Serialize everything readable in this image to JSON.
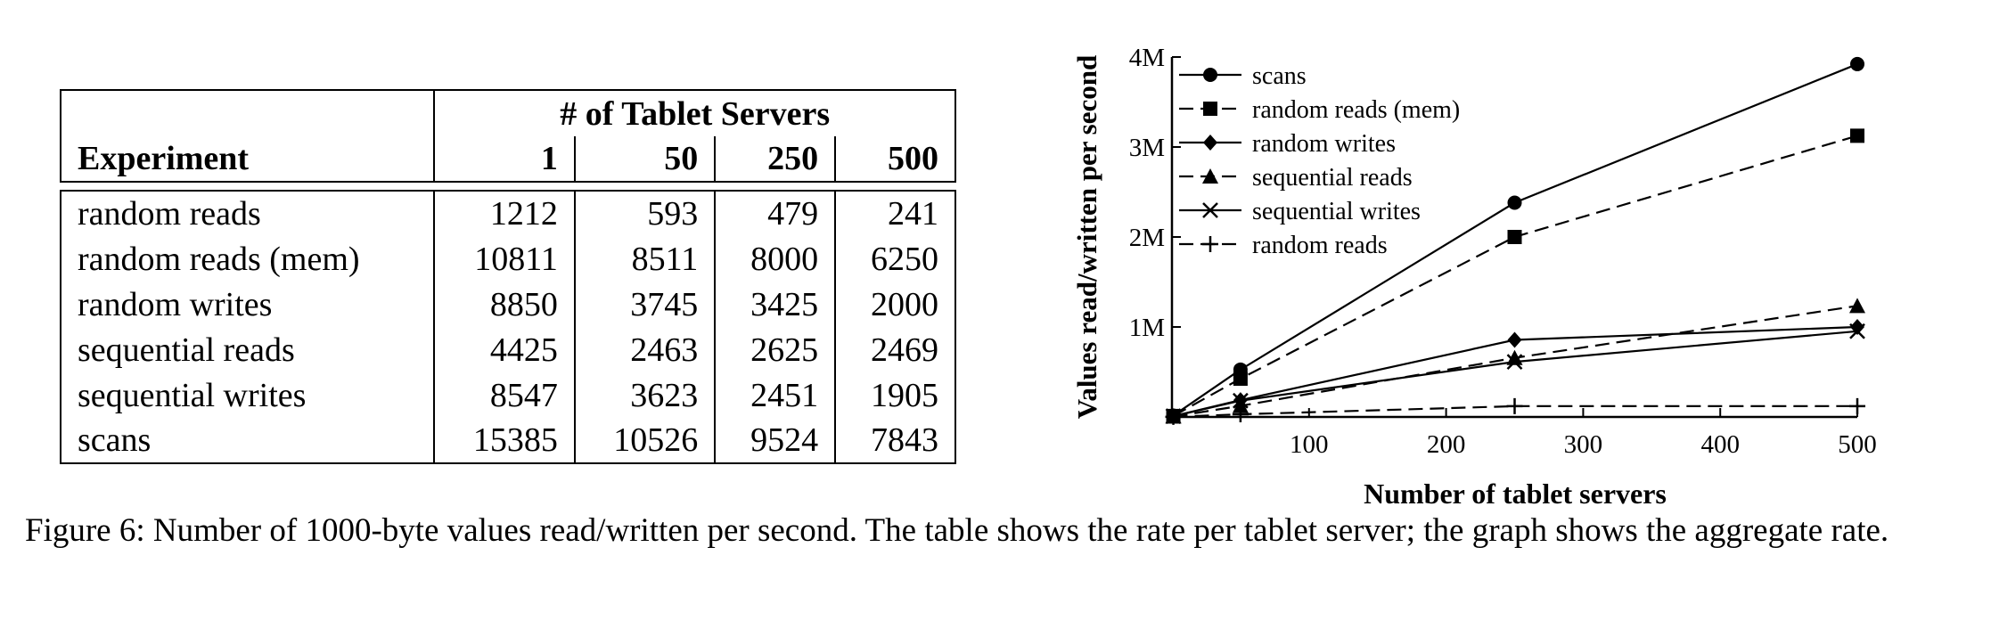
{
  "table": {
    "experiment_header": "Experiment",
    "group_header": "# of Tablet Servers",
    "server_counts": [
      "1",
      "50",
      "250",
      "500"
    ],
    "rows": [
      {
        "label": "random reads",
        "values": [
          "1212",
          "593",
          "479",
          "241"
        ]
      },
      {
        "label": "random reads (mem)",
        "values": [
          "10811",
          "8511",
          "8000",
          "6250"
        ]
      },
      {
        "label": "random writes",
        "values": [
          "8850",
          "3745",
          "3425",
          "2000"
        ]
      },
      {
        "label": "sequential reads",
        "values": [
          "4425",
          "2463",
          "2625",
          "2469"
        ]
      },
      {
        "label": "sequential writes",
        "values": [
          "8547",
          "3623",
          "2451",
          "1905"
        ]
      },
      {
        "label": "scans",
        "values": [
          "15385",
          "10526",
          "9524",
          "7843"
        ]
      }
    ]
  },
  "chart_data": {
    "type": "line",
    "xlabel": "Number of tablet servers",
    "ylabel": "Values read/written per second",
    "xlim": [
      0,
      500
    ],
    "ylim": [
      0,
      4000000
    ],
    "xticks": [
      100,
      200,
      300,
      400,
      500
    ],
    "xtick_labels": [
      "100",
      "200",
      "300",
      "400",
      "500"
    ],
    "yticks": [
      1000000,
      2000000,
      3000000,
      4000000
    ],
    "ytick_labels": [
      "1M",
      "2M",
      "3M",
      "4M"
    ],
    "grid": false,
    "legend_position": "top-left",
    "x": [
      1,
      50,
      250,
      500
    ],
    "series": [
      {
        "name": "scans",
        "values": [
          15385,
          526300,
          2381000,
          3921500
        ],
        "marker": "circle",
        "dash": "solid"
      },
      {
        "name": "random reads (mem)",
        "values": [
          10811,
          425550,
          2000000,
          3125000
        ],
        "marker": "square",
        "dash": "dashed"
      },
      {
        "name": "random writes",
        "values": [
          8850,
          187250,
          856250,
          1000000
        ],
        "marker": "diamond",
        "dash": "solid"
      },
      {
        "name": "sequential reads",
        "values": [
          4425,
          123150,
          656250,
          1234500
        ],
        "marker": "triangle",
        "dash": "dashed"
      },
      {
        "name": "sequential writes",
        "values": [
          8547,
          181150,
          612750,
          952500
        ],
        "marker": "x",
        "dash": "solid"
      },
      {
        "name": "random reads",
        "values": [
          1212,
          29650,
          119750,
          120500
        ],
        "marker": "plus",
        "dash": "dashed"
      }
    ]
  },
  "caption": "Figure 6: Number of 1000-byte values read/written per second. The table shows the rate per tablet server; the graph shows the aggregate rate."
}
